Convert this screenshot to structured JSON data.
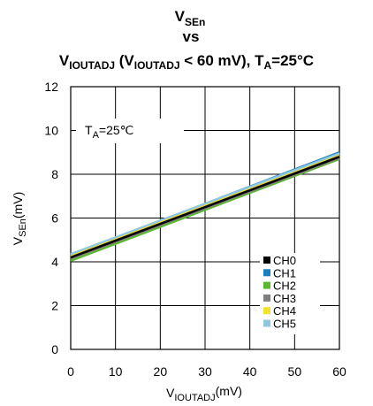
{
  "chart_data": {
    "type": "line",
    "title": {
      "line1_main": "V",
      "line1_sub": "SEn",
      "line2": "vs",
      "line3_a": "V",
      "line3_a_sub": "IOUTADJ",
      "line3_b": " (V",
      "line3_b_sub": "IOUTADJ",
      "line3_c": " < 60 mV), T",
      "line3_c_sub": "A",
      "line3_d": "=25°C"
    },
    "xlabel": {
      "main": "V",
      "sub": "IOUTADJ",
      "unit": "(mV)"
    },
    "ylabel": {
      "main": "V",
      "sub": "SEn",
      "unit": "(mV)"
    },
    "xlim": [
      0,
      60
    ],
    "ylim": [
      0,
      12
    ],
    "xticks": [
      "0",
      "10",
      "20",
      "30",
      "40",
      "50",
      "60"
    ],
    "yticks": [
      "0",
      "2",
      "4",
      "6",
      "8",
      "10",
      "12"
    ],
    "grid": true,
    "annotation": {
      "main": "T",
      "sub": "A",
      "rest": "=25℃"
    },
    "legend_position": "bottom-right",
    "x": [
      0,
      60
    ],
    "series": [
      {
        "name": "CH0",
        "color": "#000000",
        "values": [
          4.2,
          8.8
        ]
      },
      {
        "name": "CH1",
        "color": "#1a7fbf",
        "values": [
          4.3,
          9.0
        ]
      },
      {
        "name": "CH2",
        "color": "#5cb82e",
        "values": [
          4.05,
          8.7
        ]
      },
      {
        "name": "CH3",
        "color": "#7f7f7f",
        "values": [
          4.15,
          8.75
        ]
      },
      {
        "name": "CH4",
        "color": "#f2e22c",
        "values": [
          4.25,
          8.85
        ]
      },
      {
        "name": "CH5",
        "color": "#8fc7e0",
        "values": [
          4.35,
          8.95
        ]
      }
    ]
  }
}
